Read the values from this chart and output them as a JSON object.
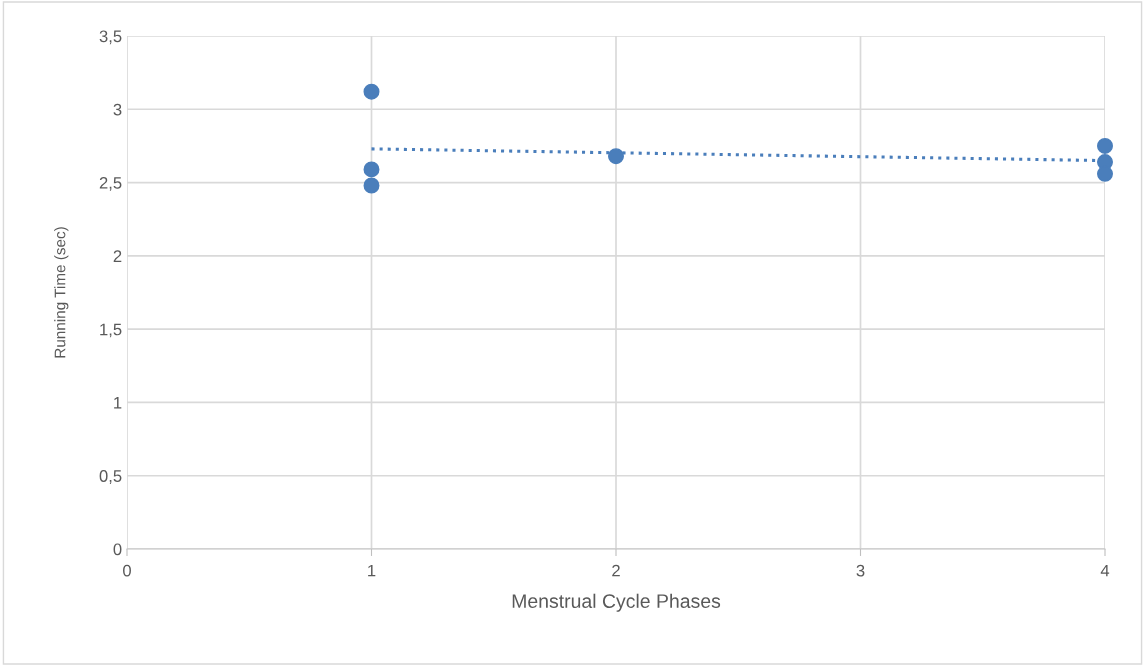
{
  "chart_data": {
    "type": "scatter",
    "xlabel": "Menstrual Cycle Phases",
    "ylabel": "Running Time (sec)",
    "series": [
      {
        "color": "#4a7ebb",
        "x": [
          1,
          1,
          1,
          2,
          4,
          4,
          4
        ],
        "values": [
          3.12,
          2.59,
          2.48,
          2.68,
          2.75,
          2.64,
          2.56
        ],
        "marker": "circle"
      },
      {
        "type": "line",
        "color": "#4a7ebb",
        "x": [
          1,
          4
        ],
        "values": [
          2.73,
          2.65
        ],
        "line_style": "dotted",
        "marker": "none"
      }
    ],
    "xlim": [
      0,
      4
    ],
    "xticks": [
      0,
      1,
      2,
      3,
      4
    ],
    "ylim": [
      0,
      3.5
    ],
    "yticks": [
      0,
      {
        "value": 0.5,
        "label": "0,5"
      },
      1,
      {
        "value": 1.5,
        "label": "1,5"
      },
      2,
      {
        "value": 2.5,
        "label": "2,5"
      },
      3,
      {
        "value": 3.5,
        "label": "3,5"
      }
    ],
    "grid": true,
    "legend": false
  }
}
